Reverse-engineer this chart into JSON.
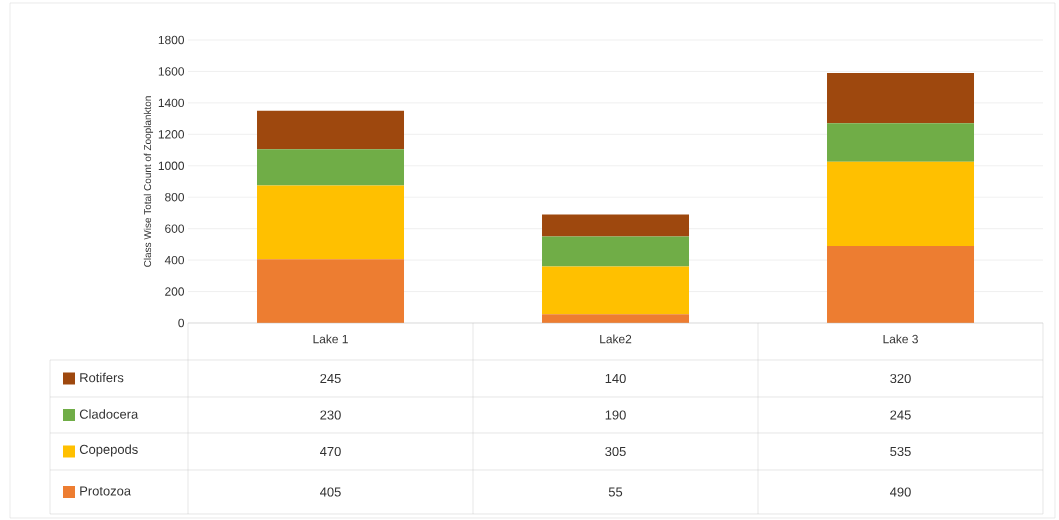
{
  "chart_data": {
    "type": "bar",
    "stacked": true,
    "ylabel": "Class Wise Total Count of Zooplankton",
    "categories": [
      "Lake 1",
      "Lake2",
      "Lake 3"
    ],
    "series": [
      {
        "name": "Protozoa",
        "color": "#ed7d31",
        "values": [
          405,
          55,
          490
        ]
      },
      {
        "name": "Copepods",
        "color": "#ffc000",
        "values": [
          470,
          305,
          535
        ]
      },
      {
        "name": "Cladocera",
        "color": "#70ad47",
        "values": [
          230,
          190,
          245
        ]
      },
      {
        "name": "Rotifers",
        "color": "#9e480e",
        "values": [
          245,
          140,
          320
        ]
      }
    ],
    "ylim": [
      0,
      1800
    ],
    "yticks": [
      0,
      200,
      400,
      600,
      800,
      1000,
      1200,
      1400,
      1600,
      1800
    ],
    "grid": "y",
    "legend": "bottom left",
    "data_labels": true
  }
}
